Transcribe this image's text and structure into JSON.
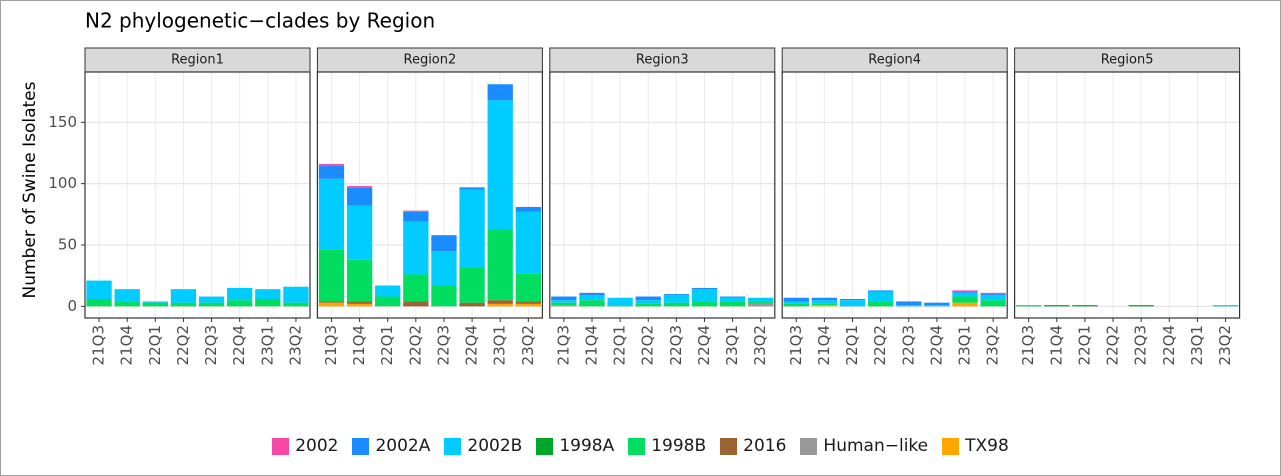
{
  "title": "N2 phylogenetic−clades by Region",
  "y_label": "Number of Swine Isolates",
  "chart_data": [
    {
      "type": "bar",
      "stacked": true,
      "title": "Region1",
      "categories": [
        "21Q3",
        "21Q4",
        "22Q1",
        "22Q2",
        "22Q3",
        "22Q4",
        "23Q1",
        "23Q2"
      ],
      "ylim": [
        -9.5,
        191
      ],
      "yticks": [
        0,
        50,
        100,
        150
      ],
      "grid": true,
      "series": [
        {
          "name": "2002",
          "color": "#f748a5",
          "values": [
            0,
            0,
            0,
            0,
            0,
            0,
            0,
            0
          ]
        },
        {
          "name": "2002A",
          "color": "#1a8cff",
          "values": [
            0,
            0,
            0,
            0,
            0,
            0,
            0,
            0
          ]
        },
        {
          "name": "2002B",
          "color": "#00ccff",
          "values": [
            15,
            10,
            1,
            11,
            5,
            10,
            8,
            13
          ]
        },
        {
          "name": "1998A",
          "color": "#00a62a",
          "values": [
            0,
            0,
            0,
            0,
            0,
            0,
            0,
            0
          ]
        },
        {
          "name": "1998B",
          "color": "#00dd5f",
          "values": [
            6,
            4,
            3,
            3,
            3,
            5,
            6,
            3
          ]
        },
        {
          "name": "2016",
          "color": "#9c6430",
          "values": [
            0,
            0,
            0,
            0,
            0,
            0,
            0,
            0
          ]
        },
        {
          "name": "Human−like",
          "color": "#999999",
          "values": [
            0,
            0,
            0,
            0,
            0,
            0,
            0,
            0
          ]
        },
        {
          "name": "TX98",
          "color": "#ffa500",
          "values": [
            0,
            0,
            0,
            0,
            0,
            0,
            0,
            0
          ]
        }
      ]
    },
    {
      "type": "bar",
      "stacked": true,
      "title": "Region2",
      "categories": [
        "21Q3",
        "21Q4",
        "22Q1",
        "22Q2",
        "22Q3",
        "22Q4",
        "23Q1",
        "23Q2"
      ],
      "ylim": [
        -9.5,
        191
      ],
      "yticks": [
        0,
        50,
        100,
        150
      ],
      "grid": true,
      "series": [
        {
          "name": "2002",
          "color": "#f748a5",
          "values": [
            1,
            1,
            0,
            1,
            0,
            0,
            0,
            0
          ]
        },
        {
          "name": "2002A",
          "color": "#1a8cff",
          "values": [
            11,
            15,
            0,
            8,
            13,
            2,
            13,
            4
          ]
        },
        {
          "name": "2002B",
          "color": "#00ccff",
          "values": [
            58,
            44,
            9,
            43,
            28,
            63,
            105,
            50
          ]
        },
        {
          "name": "1998A",
          "color": "#00a62a",
          "values": [
            0,
            0,
            0,
            0,
            0,
            0,
            0,
            0
          ]
        },
        {
          "name": "1998B",
          "color": "#00dd5f",
          "values": [
            42,
            34,
            8,
            22,
            17,
            29,
            58,
            23
          ]
        },
        {
          "name": "2016",
          "color": "#9c6430",
          "values": [
            1,
            2,
            0,
            4,
            0,
            3,
            3,
            2
          ]
        },
        {
          "name": "Human−like",
          "color": "#999999",
          "values": [
            0,
            0,
            0,
            0,
            0,
            0,
            0,
            0
          ]
        },
        {
          "name": "TX98",
          "color": "#ffa500",
          "values": [
            3,
            2,
            0,
            0,
            0,
            0,
            2,
            2
          ]
        }
      ]
    },
    {
      "type": "bar",
      "stacked": true,
      "title": "Region3",
      "categories": [
        "21Q3",
        "21Q4",
        "22Q1",
        "22Q2",
        "22Q3",
        "22Q4",
        "23Q1",
        "23Q2"
      ],
      "ylim": [
        -9.5,
        191
      ],
      "yticks": [
        0,
        50,
        100,
        150
      ],
      "grid": true,
      "series": [
        {
          "name": "2002",
          "color": "#f748a5",
          "values": [
            0,
            0,
            0,
            0,
            0,
            0,
            0,
            0
          ]
        },
        {
          "name": "2002A",
          "color": "#1a8cff",
          "values": [
            3,
            2,
            0,
            3,
            1,
            1,
            1,
            0
          ]
        },
        {
          "name": "2002B",
          "color": "#00ccff",
          "values": [
            2,
            4,
            6,
            3,
            6,
            10,
            3,
            3
          ]
        },
        {
          "name": "1998A",
          "color": "#00a62a",
          "values": [
            0,
            0,
            0,
            0,
            0,
            0,
            0,
            0
          ]
        },
        {
          "name": "1998B",
          "color": "#00dd5f",
          "values": [
            2,
            5,
            1,
            2,
            3,
            4,
            4,
            2
          ]
        },
        {
          "name": "2016",
          "color": "#9c6430",
          "values": [
            0,
            0,
            0,
            0,
            0,
            0,
            0,
            0
          ]
        },
        {
          "name": "Human−like",
          "color": "#999999",
          "values": [
            1,
            0,
            0,
            0,
            0,
            0,
            0,
            2
          ]
        },
        {
          "name": "TX98",
          "color": "#ffa500",
          "values": [
            0,
            0,
            0,
            0,
            0,
            0,
            0,
            0
          ]
        }
      ]
    },
    {
      "type": "bar",
      "stacked": true,
      "title": "Region4",
      "categories": [
        "21Q3",
        "21Q4",
        "22Q1",
        "22Q2",
        "22Q3",
        "22Q4",
        "23Q1",
        "23Q2"
      ],
      "ylim": [
        -9.5,
        191
      ],
      "yticks": [
        0,
        50,
        100,
        150
      ],
      "grid": true,
      "series": [
        {
          "name": "2002",
          "color": "#f748a5",
          "values": [
            0,
            0,
            0,
            0,
            0,
            0,
            1,
            1
          ]
        },
        {
          "name": "2002A",
          "color": "#1a8cff",
          "values": [
            3,
            2,
            1,
            1,
            3,
            2,
            1,
            1
          ]
        },
        {
          "name": "2002B",
          "color": "#00ccff",
          "values": [
            2,
            3,
            5,
            8,
            1,
            1,
            3,
            4
          ]
        },
        {
          "name": "1998A",
          "color": "#00a62a",
          "values": [
            0,
            0,
            0,
            0,
            0,
            0,
            0,
            0
          ]
        },
        {
          "name": "1998B",
          "color": "#00dd5f",
          "values": [
            2,
            1,
            0,
            4,
            0,
            0,
            5,
            5
          ]
        },
        {
          "name": "2016",
          "color": "#9c6430",
          "values": [
            0,
            0,
            0,
            0,
            0,
            0,
            0,
            0
          ]
        },
        {
          "name": "Human−like",
          "color": "#999999",
          "values": [
            0,
            0,
            0,
            0,
            0,
            0,
            0,
            0
          ]
        },
        {
          "name": "TX98",
          "color": "#ffa500",
          "values": [
            0,
            1,
            0,
            0,
            0,
            0,
            3,
            0
          ]
        }
      ]
    },
    {
      "type": "bar",
      "stacked": true,
      "title": "Region5",
      "categories": [
        "21Q3",
        "21Q4",
        "22Q1",
        "22Q2",
        "22Q3",
        "22Q4",
        "23Q1",
        "23Q2"
      ],
      "ylim": [
        -9.5,
        191
      ],
      "yticks": [
        0,
        50,
        100,
        150
      ],
      "grid": true,
      "series": [
        {
          "name": "2002",
          "color": "#f748a5",
          "values": [
            0,
            0,
            0,
            0,
            0,
            0,
            0,
            0
          ]
        },
        {
          "name": "2002A",
          "color": "#1a8cff",
          "values": [
            0,
            0,
            0,
            0,
            0,
            0,
            0,
            0
          ]
        },
        {
          "name": "2002B",
          "color": "#00ccff",
          "values": [
            0,
            0,
            0,
            0,
            0,
            0,
            0,
            1
          ]
        },
        {
          "name": "1998A",
          "color": "#00a62a",
          "values": [
            0,
            1,
            1,
            0,
            1,
            0,
            0,
            0
          ]
        },
        {
          "name": "1998B",
          "color": "#00dd5f",
          "values": [
            1,
            0,
            0,
            0,
            0,
            0,
            0,
            0
          ]
        },
        {
          "name": "2016",
          "color": "#9c6430",
          "values": [
            0,
            0,
            0,
            0,
            0,
            0,
            0,
            0
          ]
        },
        {
          "name": "Human−like",
          "color": "#999999",
          "values": [
            0,
            0,
            0,
            0,
            0,
            0,
            0,
            0
          ]
        },
        {
          "name": "TX98",
          "color": "#ffa500",
          "values": [
            0,
            0,
            0,
            0,
            0,
            0,
            0,
            0
          ]
        }
      ]
    }
  ]
}
